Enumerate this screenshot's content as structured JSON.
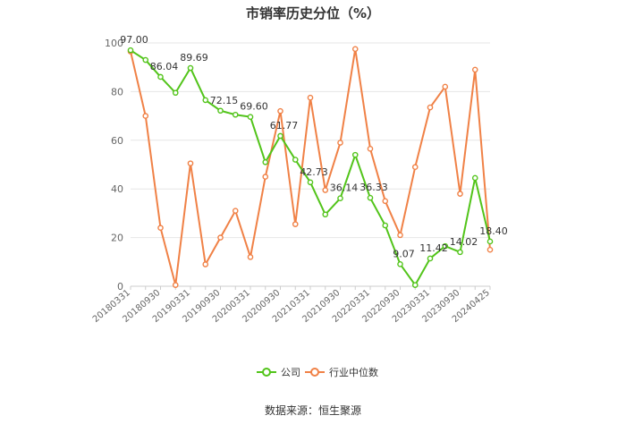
{
  "page": {
    "title": "市销率历史分位（%）",
    "source": "数据来源：恒生聚源"
  },
  "legend": {
    "company_label": "公司",
    "industry_label": "行业中位数"
  },
  "colors": {
    "company": "#52c41a",
    "industry": "#f08146",
    "grid": "#e6e6e6",
    "axis": "#cccccc"
  },
  "chart_data": {
    "type": "line",
    "title": "市销率历史分位（%）",
    "xlabel": "",
    "ylabel": "",
    "ylim": [
      0,
      100
    ],
    "yticks": [
      0,
      20,
      40,
      60,
      80,
      100
    ],
    "grid": true,
    "legend_position": "bottom",
    "x": [
      "20180331",
      "20180630",
      "20180930",
      "20181231",
      "20190331",
      "20190630",
      "20190930",
      "20191231",
      "20200331",
      "20200630",
      "20200930",
      "20201231",
      "20210331",
      "20210630",
      "20210930",
      "20211231",
      "20220331",
      "20220630",
      "20220930",
      "20221231",
      "20230331",
      "20230630",
      "20230930",
      "20231231",
      "20240425"
    ],
    "x_tick_labels": [
      "20180331",
      "20180930",
      "20190331",
      "20190930",
      "20200331",
      "20200930",
      "20210331",
      "20210930",
      "20220331",
      "20220930",
      "20230331",
      "20230930",
      "20240425"
    ],
    "series": [
      {
        "name": "公司",
        "values": [
          97.0,
          93.0,
          86.04,
          79.5,
          89.69,
          76.5,
          72.15,
          70.5,
          69.6,
          51.0,
          61.77,
          52.0,
          42.73,
          29.5,
          36.14,
          54.0,
          36.33,
          25.0,
          9.07,
          0.5,
          11.42,
          16.5,
          14.02,
          44.5,
          18.4
        ],
        "data_labels": {
          "0": "97.00",
          "2": "86.04",
          "4": "89.69",
          "6": "72.15",
          "8": "69.60",
          "10": "61.77",
          "12": "42.73",
          "14": "36.14",
          "16": "36.33",
          "18": "9.07",
          "20": "11.42",
          "22": "14.02",
          "24": "18.40"
        }
      },
      {
        "name": "行业中位数",
        "values": [
          96.5,
          70.0,
          24.0,
          0.5,
          50.5,
          9.0,
          20.0,
          31.0,
          12.0,
          45.0,
          72.0,
          25.5,
          77.5,
          39.5,
          59.0,
          97.5,
          56.5,
          35.0,
          21.0,
          49.0,
          73.5,
          82.0,
          38.0,
          89.0,
          15.0
        ]
      }
    ]
  }
}
